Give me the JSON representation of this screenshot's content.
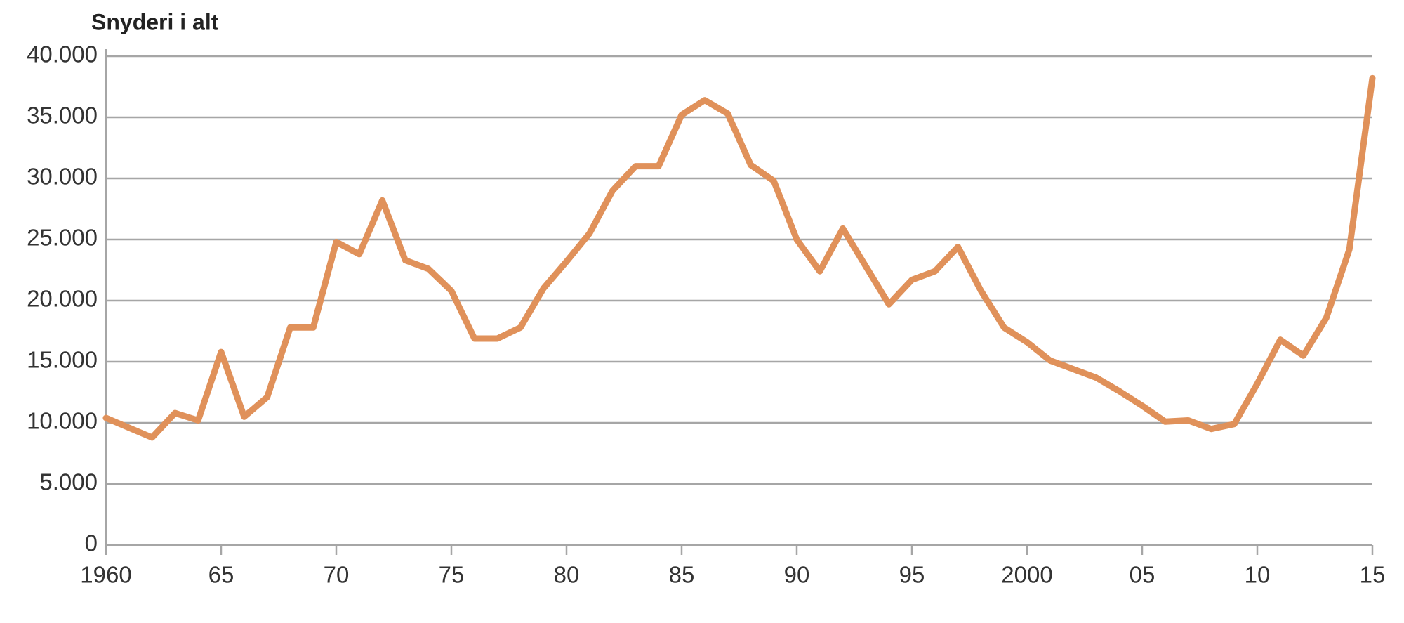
{
  "chart_data": {
    "type": "line",
    "title": "Snyderi i alt",
    "x": [
      1960,
      1961,
      1962,
      1963,
      1964,
      1965,
      1966,
      1967,
      1968,
      1969,
      1970,
      1971,
      1972,
      1973,
      1974,
      1975,
      1976,
      1977,
      1978,
      1979,
      1980,
      1981,
      1982,
      1983,
      1984,
      1985,
      1986,
      1987,
      1988,
      1989,
      1990,
      1991,
      1992,
      1993,
      1994,
      1995,
      1996,
      1997,
      1998,
      1999,
      2000,
      2001,
      2002,
      2003,
      2004,
      2005,
      2006,
      2007,
      2008,
      2009,
      2010,
      2011,
      2012,
      2013,
      2014,
      2015
    ],
    "values": [
      10400,
      9600,
      8800,
      10800,
      10200,
      15800,
      10500,
      12100,
      17800,
      17800,
      24800,
      23800,
      28200,
      23300,
      22600,
      20800,
      16900,
      16900,
      17800,
      21000,
      23200,
      25500,
      29000,
      31000,
      31000,
      35200,
      36400,
      35300,
      31100,
      29800,
      25000,
      22400,
      25900,
      22800,
      19700,
      21700,
      22400,
      24400,
      20800,
      17800,
      16600,
      15100,
      14400,
      13700,
      12600,
      11400,
      10100,
      10200,
      9500,
      9900,
      13200,
      16800,
      15500,
      18600,
      24200,
      38200
    ],
    "color": "#e0915a",
    "xlim": [
      1960,
      2015
    ],
    "xticks": [
      1960,
      {
        "value": 1965,
        "label": "65"
      },
      {
        "value": 1970,
        "label": "70"
      },
      {
        "value": 1975,
        "label": "75"
      },
      {
        "value": 1980,
        "label": "80"
      },
      {
        "value": 1985,
        "label": "85"
      },
      {
        "value": 1990,
        "label": "90"
      },
      {
        "value": 1995,
        "label": "95"
      },
      2000,
      {
        "value": 2005,
        "label": "05"
      },
      {
        "value": 2010,
        "label": "10"
      },
      {
        "value": 2015,
        "label": "15"
      }
    ],
    "ylim": [
      0,
      40000
    ],
    "yticks": [
      0,
      {
        "value": 5000,
        "label": "5.000"
      },
      {
        "value": 10000,
        "label": "10.000"
      },
      {
        "value": 15000,
        "label": "15.000"
      },
      {
        "value": 20000,
        "label": "20.000"
      },
      {
        "value": 25000,
        "label": "25.000"
      },
      {
        "value": 30000,
        "label": "30.000"
      },
      {
        "value": 35000,
        "label": "35.000"
      },
      {
        "value": 40000,
        "label": "40.000"
      }
    ],
    "grid": true
  }
}
